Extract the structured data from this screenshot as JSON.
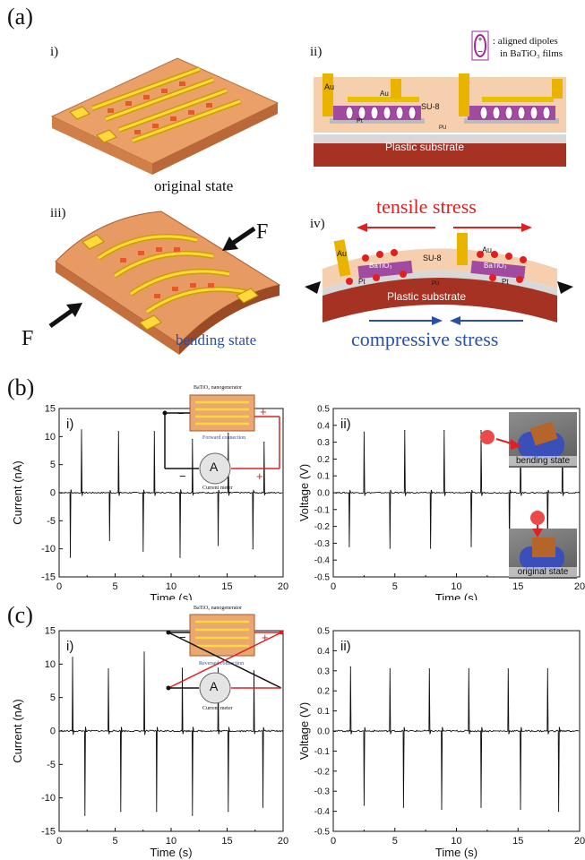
{
  "panels": {
    "a": {
      "letter": "(a)",
      "i": {
        "label": "i)",
        "caption": "original state"
      },
      "ii": {
        "label": "ii)",
        "legend_text_1": ": aligned dipoles",
        "legend_text_2": "in BaTiO₃ films",
        "au1": "Au",
        "au2": "Au",
        "su8": "SU-8",
        "pt": "Pt",
        "pu": "PU",
        "substrate": "Plastic substrate"
      },
      "iii": {
        "label": "iii)",
        "caption": "bending state",
        "force": "F"
      },
      "iv": {
        "label": "iv)",
        "tensile": "tensile stress",
        "compressive": "compressive stress",
        "au1": "Au",
        "au2": "Au",
        "bto1": "BaTiO₃",
        "bto2": "BaTiO₃",
        "su8": "SU-8",
        "pt1": "Pt",
        "pt2": "Pt",
        "pu": "PU",
        "substrate": "Plastic substrate"
      }
    },
    "b": {
      "letter": "(b)"
    },
    "c": {
      "letter": "(c)"
    },
    "inset_b": {
      "title": "BaTiO₃ nanogenerator",
      "connection": "Forward connection",
      "meter": "Current meter",
      "meter_symbol": "A",
      "minus": "−",
      "plus": "+"
    },
    "inset_c": {
      "title": "BaTiO₃ nanogenerator",
      "connection": "Reversed connection",
      "meter": "Current meter",
      "meter_symbol": "A",
      "minus": "−",
      "plus": "+"
    },
    "photos": {
      "bending": "bending state",
      "original": "original state"
    }
  },
  "colors": {
    "tensile": "#e02020",
    "compressive": "#2a4fa8",
    "substrate": "#a63224",
    "gold": "#e8b400",
    "wire_red": "#e02020"
  },
  "chart_data": [
    {
      "id": "b-i",
      "type": "line",
      "panel_label": "i)",
      "xlabel": "Time (s)",
      "ylabel": "Current (nA)",
      "xlim": [
        0,
        20
      ],
      "ylim": [
        -15,
        15
      ],
      "xticks": [
        0,
        5,
        10,
        15,
        20
      ],
      "yticks": [
        -15,
        -10,
        -5,
        0,
        5,
        10,
        15
      ],
      "peaks_positive": [
        {
          "t": 2.0,
          "v": 11.2
        },
        {
          "t": 5.3,
          "v": 10.9
        },
        {
          "t": 8.5,
          "v": 10.9
        },
        {
          "t": 11.9,
          "v": 9.5
        },
        {
          "t": 15.1,
          "v": 10.6
        },
        {
          "t": 18.3,
          "v": 9.0
        }
      ],
      "peaks_negative": [
        {
          "t": 1.0,
          "v": -11.5
        },
        {
          "t": 4.5,
          "v": -8.5
        },
        {
          "t": 7.5,
          "v": -10.4
        },
        {
          "t": 10.8,
          "v": -11.5
        },
        {
          "t": 14.2,
          "v": -9.4
        },
        {
          "t": 17.3,
          "v": -10.0
        }
      ]
    },
    {
      "id": "b-ii",
      "type": "line",
      "panel_label": "ii)",
      "xlabel": "Time (s)",
      "ylabel": "Voltage (V)",
      "xlim": [
        0,
        20
      ],
      "ylim": [
        -0.5,
        0.5
      ],
      "xticks": [
        0,
        5,
        10,
        15,
        20
      ],
      "yticks": [
        -0.5,
        -0.4,
        -0.3,
        -0.2,
        -0.1,
        0.0,
        0.1,
        0.2,
        0.3,
        0.4,
        0.5
      ],
      "peaks_positive": [
        {
          "t": 2.5,
          "v": 0.36
        },
        {
          "t": 5.8,
          "v": 0.37
        },
        {
          "t": 9.0,
          "v": 0.37
        },
        {
          "t": 12.0,
          "v": 0.37
        },
        {
          "t": 15.2,
          "v": 0.36
        },
        {
          "t": 18.6,
          "v": 0.37
        }
      ],
      "peaks_negative": [
        {
          "t": 1.3,
          "v": -0.32
        },
        {
          "t": 4.6,
          "v": -0.33
        },
        {
          "t": 7.9,
          "v": -0.33
        },
        {
          "t": 11.2,
          "v": -0.32
        },
        {
          "t": 14.3,
          "v": -0.33
        },
        {
          "t": 17.4,
          "v": -0.32
        }
      ]
    },
    {
      "id": "c-i",
      "type": "line",
      "panel_label": "i)",
      "xlabel": "Time (s)",
      "ylabel": "Current (nA)",
      "xlim": [
        0,
        20
      ],
      "ylim": [
        -15,
        15
      ],
      "xticks": [
        0,
        5,
        10,
        15,
        20
      ],
      "yticks": [
        -15,
        -10,
        -5,
        0,
        5,
        10,
        15
      ],
      "peaks_positive": [
        {
          "t": 1.2,
          "v": 11.0
        },
        {
          "t": 4.4,
          "v": 9.3
        },
        {
          "t": 7.6,
          "v": 11.8
        },
        {
          "t": 11.0,
          "v": 9.4
        },
        {
          "t": 14.2,
          "v": 9.4
        },
        {
          "t": 17.4,
          "v": 9.0
        }
      ],
      "peaks_negative": [
        {
          "t": 2.3,
          "v": -12.6
        },
        {
          "t": 5.5,
          "v": -12.0
        },
        {
          "t": 8.7,
          "v": -12.0
        },
        {
          "t": 11.9,
          "v": -12.6
        },
        {
          "t": 15.1,
          "v": -12.0
        },
        {
          "t": 18.2,
          "v": -11.4
        }
      ]
    },
    {
      "id": "c-ii",
      "type": "line",
      "panel_label": "ii)",
      "xlabel": "Time (s)",
      "ylabel": "Voltage (V)",
      "xlim": [
        0,
        20
      ],
      "ylim": [
        -0.5,
        0.5
      ],
      "xticks": [
        0,
        5,
        10,
        15,
        20
      ],
      "yticks": [
        -0.5,
        -0.4,
        -0.3,
        -0.2,
        -0.1,
        0.0,
        0.1,
        0.2,
        0.3,
        0.4,
        0.5
      ],
      "peaks_positive": [
        {
          "t": 1.4,
          "v": 0.32
        },
        {
          "t": 4.6,
          "v": 0.31
        },
        {
          "t": 7.8,
          "v": 0.31
        },
        {
          "t": 11.0,
          "v": 0.31
        },
        {
          "t": 14.2,
          "v": 0.31
        },
        {
          "t": 17.4,
          "v": 0.31
        }
      ],
      "peaks_negative": [
        {
          "t": 2.5,
          "v": -0.37
        },
        {
          "t": 5.7,
          "v": -0.38
        },
        {
          "t": 8.8,
          "v": -0.39
        },
        {
          "t": 12.0,
          "v": -0.38
        },
        {
          "t": 15.2,
          "v": -0.39
        },
        {
          "t": 18.3,
          "v": -0.4
        }
      ]
    }
  ]
}
